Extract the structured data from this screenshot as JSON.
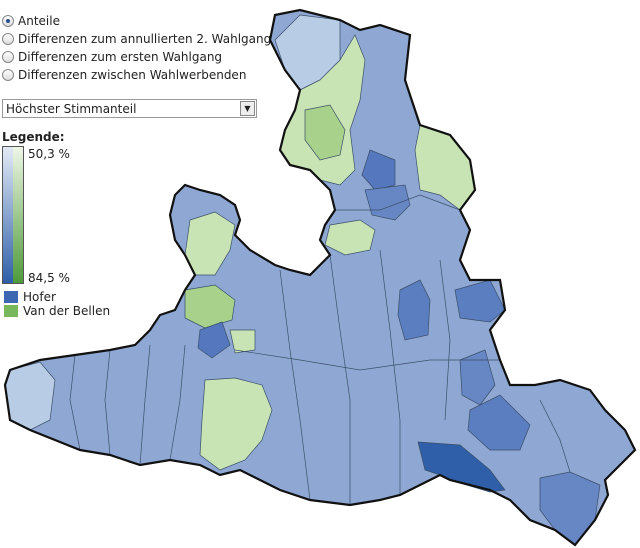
{
  "options": [
    "Anteile",
    "Differenzen zum annullierten 2. Wahlgang",
    "Differenzen zum ersten Wahlgang",
    "Differenzen zwischen Wahlwerbenden"
  ],
  "selected_option": 0,
  "dropdown": "Höchster Stimmanteil",
  "legend": {
    "title": "Legende:",
    "top_label": "50,3 %",
    "bottom_label": "84,5 %",
    "entries": [
      {
        "name": "Hofer",
        "color": "#3d67b0"
      },
      {
        "name": "Van der Bellen",
        "color": "#79b85a"
      }
    ]
  }
}
